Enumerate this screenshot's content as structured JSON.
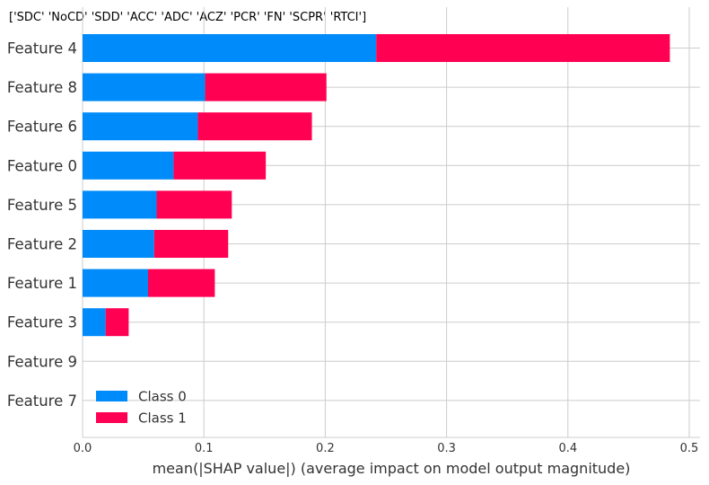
{
  "header": {
    "label": "['SDC' 'NoCD' 'SDD' 'ACC' 'ADC' 'ACZ' 'PCR' 'FN' 'SCPR' 'RTCI']"
  },
  "chart_data": {
    "type": "bar",
    "orientation": "horizontal",
    "stacked": true,
    "categories": [
      "Feature 4",
      "Feature 8",
      "Feature 6",
      "Feature 0",
      "Feature 5",
      "Feature 2",
      "Feature 1",
      "Feature 3",
      "Feature 9",
      "Feature 7"
    ],
    "series": [
      {
        "name": "Class 0",
        "color": "#008bfb",
        "values": [
          0.242,
          0.101,
          0.095,
          0.075,
          0.061,
          0.059,
          0.054,
          0.019,
          0.0,
          0.0
        ]
      },
      {
        "name": "Class 1",
        "color": "#ff0052",
        "values": [
          0.242,
          0.1,
          0.094,
          0.076,
          0.062,
          0.061,
          0.055,
          0.019,
          0.0,
          0.0
        ]
      }
    ],
    "xlabel": "mean(|SHAP value|) (average impact on model output magnitude)",
    "xticks": [
      "0.0",
      "0.1",
      "0.2",
      "0.3",
      "0.4",
      "0.5"
    ],
    "tick_values": [
      0,
      0.1,
      0.2,
      0.3,
      0.4,
      0.5
    ],
    "xlim": [
      0,
      0.51
    ],
    "grid": true,
    "legend_position": "lower-left"
  }
}
